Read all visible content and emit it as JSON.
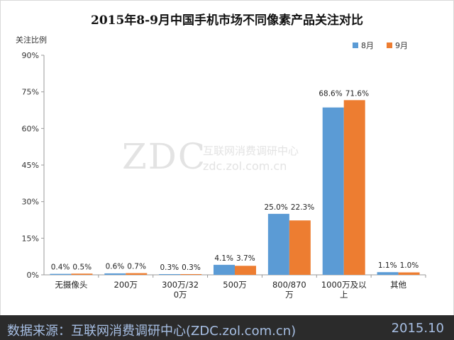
{
  "chart_data": {
    "type": "bar",
    "title": "2015年8-9月中国手机市场不同像素产品关注对比",
    "ylabel": "关注比例",
    "xlabel": "",
    "ylim": [
      0,
      90
    ],
    "yticks": [
      "0%",
      "15%",
      "30%",
      "45%",
      "60%",
      "75%",
      "90%"
    ],
    "categories": [
      "无摄像头",
      "200万",
      "300万/320万",
      "500万",
      "800/870万",
      "1000万及以上",
      "其他"
    ],
    "series": [
      {
        "name": "8月",
        "color": "#5b9bd5",
        "values": [
          0.4,
          0.6,
          0.3,
          4.1,
          25.0,
          68.6,
          1.1
        ],
        "labels": [
          "0.4%",
          "0.6%",
          "0.3%",
          "4.1%",
          "25.0%",
          "68.6%",
          "1.1%"
        ]
      },
      {
        "name": "9月",
        "color": "#ed7d31",
        "values": [
          0.5,
          0.7,
          0.3,
          3.7,
          22.3,
          71.6,
          1.0
        ],
        "labels": [
          "0.5%",
          "0.7%",
          "0.3%",
          "3.7%",
          "22.3%",
          "71.6%",
          "1.0%"
        ]
      }
    ],
    "grid": false,
    "legend_position": "top-right"
  },
  "watermark": "ZDC 互联网消费调研中心 zdc.zol.com.cn",
  "footer": {
    "source": "数据来源：互联网消费调研中心(ZDC.zol.com.cn)",
    "date": "2015.10"
  }
}
